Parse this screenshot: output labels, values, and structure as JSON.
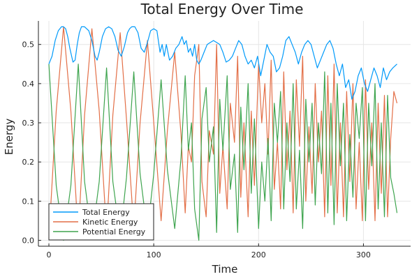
{
  "chart_data": {
    "type": "line",
    "title": "Total Energy Over Time",
    "xlabel": "Time",
    "ylabel": "Energy",
    "xlim": [
      -10,
      345
    ],
    "ylim": [
      -0.015,
      0.56
    ],
    "xticks": [
      0,
      100,
      200,
      300
    ],
    "yticks": [
      0.0,
      0.1,
      0.2,
      0.3,
      0.4,
      0.5
    ],
    "grid": true,
    "legend_position": "bottom-left",
    "colors": {
      "total": "#009AFA",
      "kinetic": "#E36F47",
      "potential": "#3EA44E"
    },
    "series": [
      {
        "name": "Total Energy",
        "color": "#009AFA",
        "x": [
          0,
          3,
          6,
          9,
          12,
          14,
          16,
          18,
          20,
          23,
          25,
          27,
          29,
          31,
          34,
          38,
          41,
          44,
          46,
          48,
          51,
          54,
          57,
          60,
          63,
          66,
          69,
          72,
          75,
          77,
          79,
          82,
          85,
          88,
          91,
          94,
          97,
          100,
          103,
          106,
          108,
          110,
          112,
          115,
          118,
          121,
          124,
          127,
          129,
          131,
          133,
          135,
          137,
          139,
          141,
          143,
          145,
          148,
          151,
          154,
          157,
          160,
          163,
          166,
          169,
          172,
          175,
          178,
          181,
          184,
          187,
          190,
          193,
          196,
          199,
          202,
          205,
          208,
          211,
          214,
          217,
          220,
          223,
          226,
          229,
          232,
          235,
          238,
          241,
          244,
          247,
          250,
          253,
          256,
          259,
          262,
          265,
          268,
          271,
          274,
          277,
          280,
          283,
          286,
          289,
          292,
          295,
          298,
          301,
          304,
          307,
          310,
          313,
          316,
          319,
          322,
          325,
          328,
          332
        ],
        "values": [
          0.45,
          0.47,
          0.51,
          0.535,
          0.545,
          0.545,
          0.54,
          0.52,
          0.49,
          0.455,
          0.46,
          0.5,
          0.53,
          0.545,
          0.545,
          0.535,
          0.51,
          0.47,
          0.46,
          0.48,
          0.52,
          0.54,
          0.545,
          0.54,
          0.52,
          0.485,
          0.47,
          0.495,
          0.53,
          0.54,
          0.545,
          0.545,
          0.53,
          0.49,
          0.48,
          0.505,
          0.535,
          0.54,
          0.535,
          0.48,
          0.5,
          0.47,
          0.5,
          0.46,
          0.47,
          0.49,
          0.5,
          0.52,
          0.5,
          0.51,
          0.48,
          0.49,
          0.47,
          0.5,
          0.46,
          0.45,
          0.46,
          0.48,
          0.5,
          0.505,
          0.51,
          0.505,
          0.5,
          0.48,
          0.455,
          0.46,
          0.47,
          0.49,
          0.51,
          0.5,
          0.47,
          0.45,
          0.46,
          0.44,
          0.47,
          0.42,
          0.46,
          0.5,
          0.48,
          0.47,
          0.43,
          0.44,
          0.47,
          0.51,
          0.52,
          0.5,
          0.48,
          0.45,
          0.48,
          0.5,
          0.51,
          0.5,
          0.47,
          0.44,
          0.46,
          0.48,
          0.5,
          0.51,
          0.49,
          0.45,
          0.42,
          0.45,
          0.39,
          0.41,
          0.36,
          0.38,
          0.42,
          0.44,
          0.4,
          0.38,
          0.41,
          0.44,
          0.42,
          0.39,
          0.44,
          0.41,
          0.43,
          0.44,
          0.45
        ]
      },
      {
        "name": "Kinetic Energy",
        "color": "#E36F47",
        "x": [
          0,
          7,
          14,
          21,
          28,
          34,
          41,
          48,
          55,
          61,
          68,
          74,
          81,
          87,
          94,
          100,
          107,
          113,
          120,
          126,
          130,
          133,
          136,
          139,
          143,
          146,
          150,
          153,
          157,
          160,
          163,
          166,
          170,
          173,
          177,
          180,
          183,
          186,
          190,
          193,
          196,
          200,
          203,
          206,
          209,
          212,
          215,
          218,
          221,
          224,
          227,
          230,
          233,
          236,
          239,
          242,
          245,
          248,
          251,
          254,
          257,
          260,
          263,
          266,
          269,
          272,
          275,
          278,
          281,
          284,
          287,
          290,
          293,
          296,
          299,
          302,
          305,
          308,
          311,
          314,
          317,
          320,
          323,
          326,
          329,
          332
        ],
        "values": [
          0.005,
          0.33,
          0.545,
          0.33,
          0.01,
          0.32,
          0.54,
          0.33,
          0.02,
          0.32,
          0.53,
          0.31,
          0.03,
          0.3,
          0.51,
          0.3,
          0.05,
          0.28,
          0.48,
          0.27,
          0.07,
          0.24,
          0.2,
          0.42,
          0.5,
          0.15,
          0.06,
          0.28,
          0.22,
          0.5,
          0.12,
          0.24,
          0.08,
          0.35,
          0.25,
          0.47,
          0.11,
          0.3,
          0.06,
          0.33,
          0.14,
          0.45,
          0.3,
          0.4,
          0.22,
          0.46,
          0.13,
          0.25,
          0.08,
          0.43,
          0.18,
          0.33,
          0.07,
          0.41,
          0.24,
          0.47,
          0.1,
          0.29,
          0.12,
          0.4,
          0.2,
          0.33,
          0.06,
          0.42,
          0.14,
          0.45,
          0.07,
          0.3,
          0.06,
          0.38,
          0.15,
          0.4,
          0.08,
          0.25,
          0.05,
          0.41,
          0.13,
          0.3,
          0.05,
          0.35,
          0.12,
          0.37,
          0.06,
          0.26,
          0.38,
          0.35
        ]
      },
      {
        "name": "Potential Energy",
        "color": "#3EA44E",
        "x": [
          0,
          7,
          14,
          21,
          28,
          34,
          41,
          48,
          55,
          61,
          68,
          74,
          81,
          87,
          94,
          100,
          107,
          113,
          120,
          126,
          130,
          133,
          136,
          139,
          143,
          146,
          150,
          153,
          157,
          160,
          163,
          166,
          170,
          173,
          177,
          180,
          183,
          186,
          190,
          193,
          196,
          200,
          203,
          206,
          209,
          212,
          215,
          218,
          221,
          224,
          227,
          230,
          233,
          236,
          239,
          242,
          245,
          248,
          251,
          254,
          257,
          260,
          263,
          266,
          269,
          272,
          275,
          278,
          281,
          284,
          287,
          290,
          293,
          296,
          299,
          302,
          305,
          308,
          311,
          314,
          317,
          320,
          323,
          326,
          329,
          332
        ],
        "values": [
          0.45,
          0.14,
          0.0,
          0.14,
          0.45,
          0.15,
          0.005,
          0.15,
          0.44,
          0.15,
          0.01,
          0.16,
          0.43,
          0.17,
          0.02,
          0.17,
          0.41,
          0.18,
          0.03,
          0.21,
          0.42,
          0.23,
          0.3,
          0.08,
          0.0,
          0.31,
          0.39,
          0.2,
          0.29,
          0.02,
          0.36,
          0.23,
          0.42,
          0.13,
          0.22,
          0.02,
          0.34,
          0.18,
          0.4,
          0.12,
          0.31,
          0.03,
          0.2,
          0.1,
          0.26,
          0.05,
          0.35,
          0.25,
          0.38,
          0.08,
          0.3,
          0.15,
          0.4,
          0.08,
          0.23,
          0.03,
          0.36,
          0.2,
          0.35,
          0.09,
          0.3,
          0.17,
          0.43,
          0.07,
          0.35,
          0.04,
          0.4,
          0.19,
          0.35,
          0.05,
          0.27,
          0.11,
          0.35,
          0.26,
          0.39,
          0.05,
          0.35,
          0.19,
          0.4,
          0.08,
          0.3,
          0.06,
          0.37,
          0.16,
          0.12,
          0.07
        ]
      }
    ]
  }
}
